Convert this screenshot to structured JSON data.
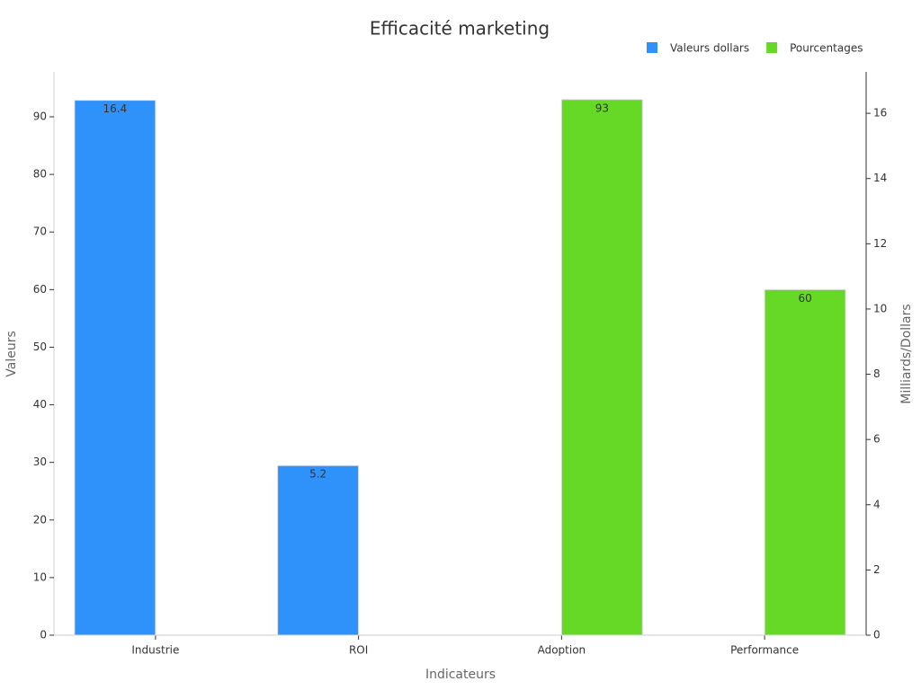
{
  "chart_data": {
    "type": "bar",
    "title": "Efficacité marketing",
    "x_label": "Indicateurs",
    "y_label": "Valeurs",
    "y2_label": "Milliards/Dollars",
    "categories": [
      "Industrie",
      "ROI",
      "Adoption",
      "Performance"
    ],
    "series": [
      {
        "name": "Valeurs dollars",
        "color": "#2f92fa",
        "axis": "y2",
        "values": [
          16.4,
          5.2,
          null,
          null
        ]
      },
      {
        "name": "Pourcentages",
        "color": "#66d926",
        "values": [
          null,
          null,
          93,
          60
        ]
      }
    ],
    "ylim": [
      0,
      97.8
    ],
    "yticks": [
      0,
      10,
      20,
      30,
      40,
      50,
      60,
      70,
      80,
      90
    ],
    "y2lim": [
      0,
      17.27
    ],
    "y2ticks": [
      0,
      2,
      4,
      6,
      8,
      10,
      12,
      14,
      16
    ],
    "legend": "top-right",
    "grid": false
  }
}
